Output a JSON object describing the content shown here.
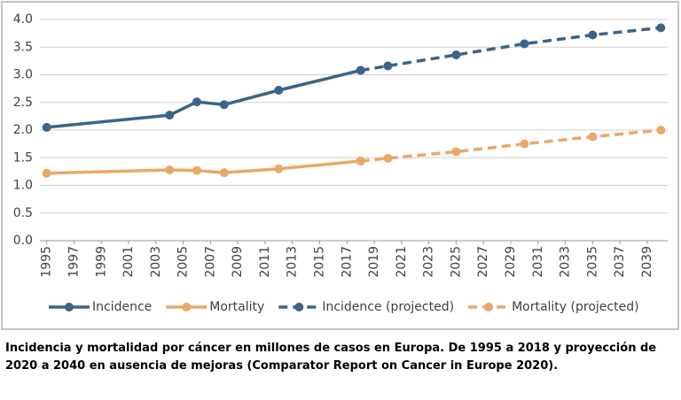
{
  "chart_data": {
    "type": "line",
    "x_tick_rotation": -90,
    "xlim": [
      1994.5,
      2040.5
    ],
    "xticks": [
      1995,
      1997,
      1999,
      2001,
      2003,
      2005,
      2007,
      2009,
      2011,
      2013,
      2015,
      2017,
      2019,
      2021,
      2023,
      2025,
      2027,
      2029,
      2031,
      2033,
      2035,
      2037,
      2039
    ],
    "ylim": [
      0,
      4
    ],
    "yticks": [
      {
        "value": 0,
        "label": "0.0"
      },
      0.5,
      {
        "value": 1,
        "label": "1.0"
      },
      1.5,
      {
        "value": 2,
        "label": "2.0"
      },
      2.5,
      {
        "value": 3,
        "label": "3.0"
      },
      3.5,
      {
        "value": 4,
        "label": "4.0"
      }
    ],
    "grid": true,
    "legend": "bottom",
    "series": [
      {
        "name": "Incidence",
        "color": "#3b6489",
        "dashed": false,
        "x": [
          1995,
          2004,
          2006,
          2008,
          2012,
          2018
        ],
        "values": [
          2.05,
          2.27,
          2.51,
          2.46,
          2.72,
          3.08
        ]
      },
      {
        "name": "Mortality",
        "color": "#eaa866",
        "dashed": false,
        "x": [
          1995,
          2004,
          2006,
          2008,
          2012,
          2018
        ],
        "values": [
          1.22,
          1.28,
          1.27,
          1.23,
          1.3,
          1.44
        ]
      },
      {
        "name": "Incidence (projected)",
        "color": "#3b6489",
        "dashed": true,
        "x": [
          2018,
          2020,
          2025,
          2030,
          2035,
          2040
        ],
        "values": [
          3.08,
          3.16,
          3.36,
          3.56,
          3.72,
          3.85
        ]
      },
      {
        "name": "Mortality (projected)",
        "color": "#eaa866",
        "dashed": true,
        "x": [
          2018,
          2020,
          2025,
          2030,
          2035,
          2040
        ],
        "values": [
          1.44,
          1.49,
          1.61,
          1.75,
          1.88,
          2.0
        ]
      }
    ],
    "caption": "Incidencia y mortalidad por cáncer en millones de casos en Europa. De 1995 a 2018 y proyección de 2020 a 2040 en ausencia de mejoras (Comparator Report on Cancer in Europe 2020)."
  }
}
